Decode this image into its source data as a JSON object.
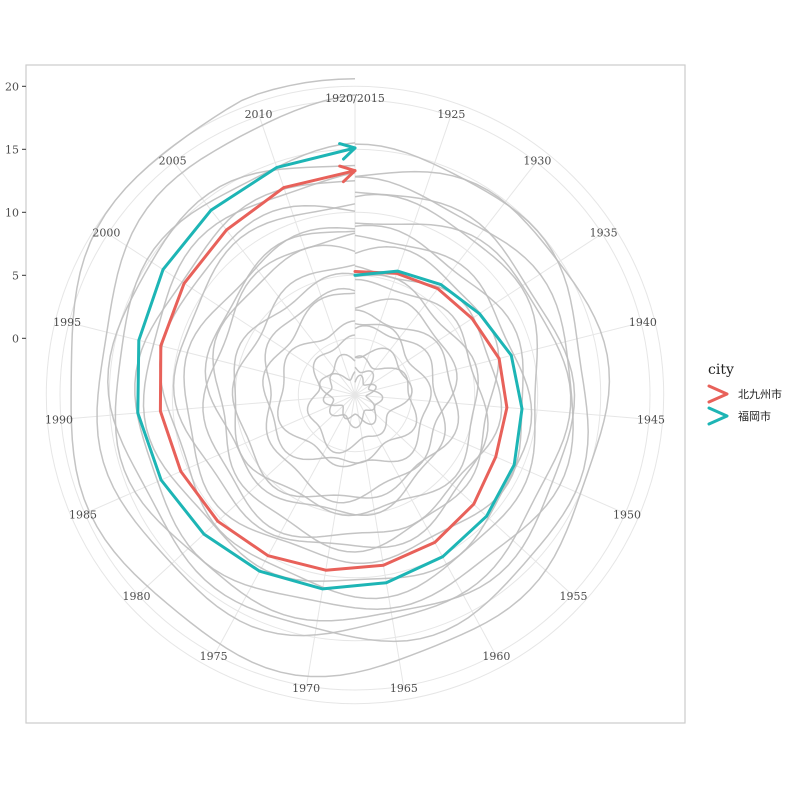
{
  "chart_data": {
    "type": "line",
    "coordinate_system": "polar-spiral",
    "angular_axis": {
      "ticks": [
        "1920/2015",
        "1925",
        "1930",
        "1935",
        "1940",
        "1945",
        "1950",
        "1955",
        "1960",
        "1965",
        "1970",
        "1975",
        "1980",
        "1985",
        "1990",
        "1995",
        "2000",
        "2005",
        "2010"
      ]
    },
    "radial_axis": {
      "ticks": [
        "0",
        "5",
        "10",
        "15",
        "20"
      ],
      "range": [
        -4.5,
        21
      ]
    },
    "grid": true,
    "legend": {
      "title": "city",
      "placement": "right"
    },
    "series": [
      {
        "name": "北九州市",
        "color": "#E8615A",
        "x": [
          1920,
          1925,
          1930,
          1935,
          1940,
          1945,
          1950,
          1955,
          1960,
          1965,
          1970,
          1975,
          1980,
          1985,
          1990,
          1995,
          2000,
          2005,
          2010,
          2015
        ],
        "y": [
          5.3,
          5.7,
          6.2,
          6.6,
          7.3,
          7.6,
          7.7,
          8.3,
          8.8,
          9.2,
          9.6,
          10.0,
          10.3,
          10.6,
          11.0,
          11.4,
          11.7,
          12.1,
          12.9,
          13.3
        ]
      },
      {
        "name": "福岡市",
        "color": "#1DB5B5",
        "x": [
          1920,
          1925,
          1930,
          1935,
          1940,
          1945,
          1950,
          1955,
          1960,
          1965,
          1970,
          1975,
          1980,
          1985,
          1990,
          1995,
          2000,
          2005,
          2010,
          2015
        ],
        "y": [
          5.0,
          5.9,
          6.6,
          7.3,
          8.3,
          8.8,
          9.3,
          9.7,
          10.1,
          10.6,
          11.1,
          11.4,
          11.8,
          12.3,
          12.8,
          13.2,
          13.7,
          14.1,
          14.6,
          15.1
        ]
      }
    ],
    "background_series_color": "#BEBEBE"
  }
}
